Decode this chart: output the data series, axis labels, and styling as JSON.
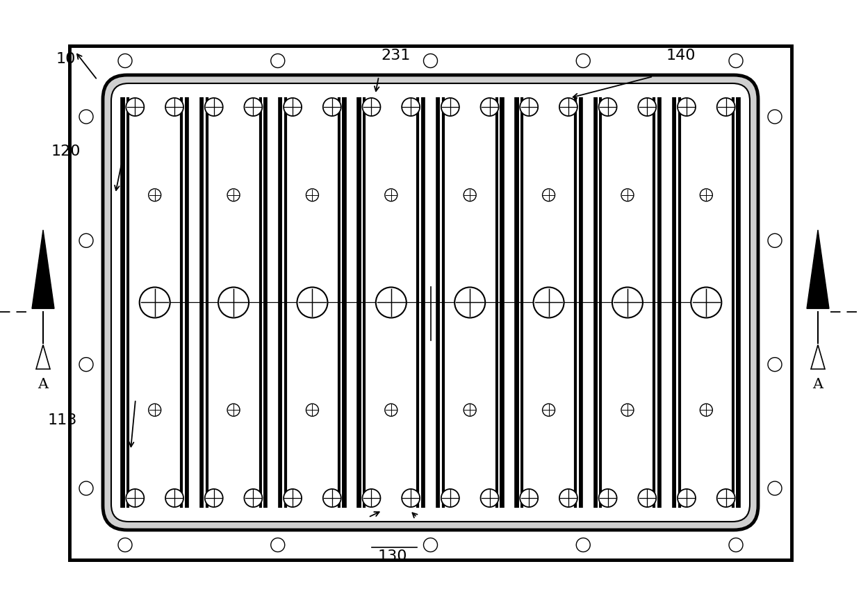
{
  "bg_color": "#ffffff",
  "line_color": "#000000",
  "fig_width": 12.39,
  "fig_height": 8.71,
  "num_cols": 8,
  "dashed_line_y": 0.485
}
